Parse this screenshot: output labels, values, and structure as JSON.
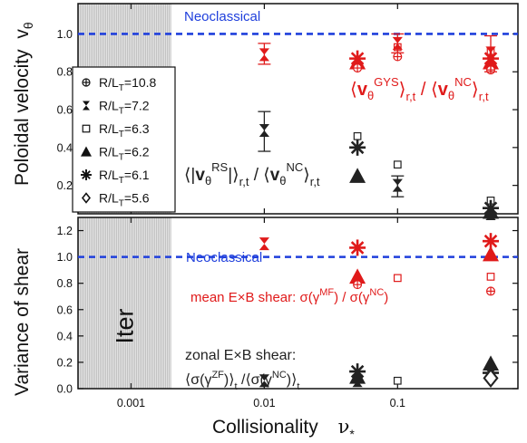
{
  "chart_data": {
    "type": "scatter",
    "xlabel": "Collisionality",
    "xlabel_symbol": "ν",
    "xlabel_sub": "*",
    "x_scale": "log",
    "xlim": [
      0.0004,
      0.8
    ],
    "x_ticks": [
      {
        "value": 0.001,
        "label": "0.001"
      },
      {
        "value": 0.01,
        "label": "0.01"
      },
      {
        "value": 0.1,
        "label": "0.1"
      }
    ],
    "shaded_region": {
      "from": 0.0004,
      "to": 0.002,
      "label": "Iter"
    },
    "reference_line": {
      "y": 1.0,
      "label_top": "Neoclassical",
      "label_bottom": "Neoclassical",
      "color": "#1f3fdc"
    },
    "legend": {
      "placement": "left",
      "entries": [
        {
          "marker": "circle-plus",
          "label": "R/L",
          "sub": "T",
          "value": "=10.8"
        },
        {
          "marker": "bowtie",
          "label": "R/L",
          "sub": "T",
          "value": "=7.2"
        },
        {
          "marker": "square",
          "label": "R/L",
          "sub": "T",
          "value": "=6.3"
        },
        {
          "marker": "triangle",
          "label": "R/L",
          "sub": "T",
          "value": "=6.2"
        },
        {
          "marker": "asterisk",
          "label": "R/L",
          "sub": "T",
          "value": "=6.1"
        },
        {
          "marker": "diamond",
          "label": "R/L",
          "sub": "T",
          "value": "=5.6"
        }
      ]
    },
    "panels": [
      {
        "id": "top",
        "ylabel": "Poloidal velocity",
        "ylabel_symbol": "v",
        "ylabel_sub": "θ",
        "ylim": [
          0.05,
          1.16
        ],
        "y_ticks": [
          {
            "value": 0.2,
            "label": "0.2"
          },
          {
            "value": 0.4,
            "label": "0.4"
          },
          {
            "value": 0.6,
            "label": "0.6"
          },
          {
            "value": 0.8,
            "label": "0.8"
          },
          {
            "value": 1.0,
            "label": "1.0"
          }
        ],
        "series": [
          {
            "color": "#e01a1a",
            "points": [
              {
                "x": 0.01,
                "y": 0.89,
                "marker": "bowtie",
                "err": [
                  0.84,
                  0.95
                ]
              },
              {
                "x": 0.05,
                "y": 0.87,
                "marker": "asterisk"
              },
              {
                "x": 0.05,
                "y": 0.85,
                "marker": "triangle"
              },
              {
                "x": 0.05,
                "y": 0.82,
                "marker": "circle-plus"
              },
              {
                "x": 0.1,
                "y": 0.93,
                "marker": "square"
              },
              {
                "x": 0.1,
                "y": 0.88,
                "marker": "circle-plus"
              },
              {
                "x": 0.1,
                "y": 0.95,
                "marker": "bowtie",
                "err": [
                  0.9,
                  1.0
                ]
              },
              {
                "x": 0.5,
                "y": 0.91,
                "marker": "square"
              },
              {
                "x": 0.5,
                "y": 0.87,
                "marker": "asterisk"
              },
              {
                "x": 0.5,
                "y": 0.85,
                "marker": "triangle"
              },
              {
                "x": 0.5,
                "y": 0.81,
                "marker": "circle-plus"
              },
              {
                "x": 0.5,
                "y": 0.9,
                "marker": "bowtie",
                "err": [
                  0.8,
                  0.99
                ]
              }
            ]
          },
          {
            "color": "#222222",
            "points": [
              {
                "x": 0.01,
                "y": 0.49,
                "marker": "bowtie",
                "err": [
                  0.38,
                  0.59
                ]
              },
              {
                "x": 0.05,
                "y": 0.46,
                "marker": "square"
              },
              {
                "x": 0.05,
                "y": 0.4,
                "marker": "asterisk"
              },
              {
                "x": 0.05,
                "y": 0.25,
                "marker": "triangle"
              },
              {
                "x": 0.1,
                "y": 0.31,
                "marker": "square"
              },
              {
                "x": 0.1,
                "y": 0.2,
                "marker": "bowtie",
                "err": [
                  0.14,
                  0.25
                ]
              },
              {
                "x": 0.5,
                "y": 0.12,
                "marker": "square"
              },
              {
                "x": 0.5,
                "y": 0.08,
                "marker": "asterisk"
              },
              {
                "x": 0.5,
                "y": 0.06,
                "marker": "triangle"
              },
              {
                "x": 0.5,
                "y": 0.05,
                "marker": "bowtie"
              }
            ]
          }
        ]
      },
      {
        "id": "bottom",
        "ylabel": "Variance of shear",
        "ylim": [
          0.0,
          1.3
        ],
        "y_ticks": [
          {
            "value": 0.0,
            "label": "0.0"
          },
          {
            "value": 0.2,
            "label": "0.2"
          },
          {
            "value": 0.4,
            "label": "0.4"
          },
          {
            "value": 0.6,
            "label": "0.6"
          },
          {
            "value": 0.8,
            "label": "0.8"
          },
          {
            "value": 1.0,
            "label": "1.0"
          },
          {
            "value": 1.2,
            "label": "1.2"
          }
        ],
        "series": [
          {
            "color": "#e01a1a",
            "points": [
              {
                "x": 0.01,
                "y": 1.1,
                "marker": "bowtie"
              },
              {
                "x": 0.05,
                "y": 1.07,
                "marker": "asterisk"
              },
              {
                "x": 0.05,
                "y": 0.85,
                "marker": "triangle"
              },
              {
                "x": 0.05,
                "y": 0.79,
                "marker": "circle-plus"
              },
              {
                "x": 0.1,
                "y": 0.84,
                "marker": "square"
              },
              {
                "x": 0.5,
                "y": 1.12,
                "marker": "asterisk"
              },
              {
                "x": 0.5,
                "y": 1.02,
                "marker": "triangle"
              },
              {
                "x": 0.5,
                "y": 0.85,
                "marker": "square"
              },
              {
                "x": 0.5,
                "y": 0.74,
                "marker": "circle-plus"
              }
            ]
          },
          {
            "color": "#222222",
            "points": [
              {
                "x": 0.01,
                "y": 0.06,
                "marker": "bowtie"
              },
              {
                "x": 0.05,
                "y": 0.13,
                "marker": "asterisk"
              },
              {
                "x": 0.05,
                "y": 0.09,
                "marker": "triangle"
              },
              {
                "x": 0.05,
                "y": 0.06,
                "marker": "bowtie"
              },
              {
                "x": 0.1,
                "y": 0.06,
                "marker": "square"
              },
              {
                "x": 0.5,
                "y": 0.19,
                "marker": "triangle"
              },
              {
                "x": 0.5,
                "y": 0.12,
                "marker": "asterisk"
              },
              {
                "x": 0.5,
                "y": 0.08,
                "marker": "diamond"
              }
            ]
          }
        ]
      }
    ],
    "annotations": {
      "top_red": {
        "color": "#e01a1a",
        "text": "⟨v_θ^{GYS}⟩_{r,t} / ⟨v_θ^{NC}⟩_{r,t}"
      },
      "top_black": {
        "color": "#222222",
        "text": "⟨|v_θ^{RS}|⟩_{r,t} / ⟨v_θ^{NC}⟩_{r,t}"
      },
      "bottom_red": {
        "color": "#e01a1a",
        "text": "mean E×B shear: σ(γ^{MF}) / σ(γ^{NC})"
      },
      "bottom_black_line1": {
        "color": "#222222",
        "text": "zonal E×B shear:"
      },
      "bottom_black_line2": {
        "color": "#222222",
        "text": "⟨σ(γ^{ZF})⟩_t /⟨σ(γ^{NC})⟩_t"
      }
    }
  }
}
